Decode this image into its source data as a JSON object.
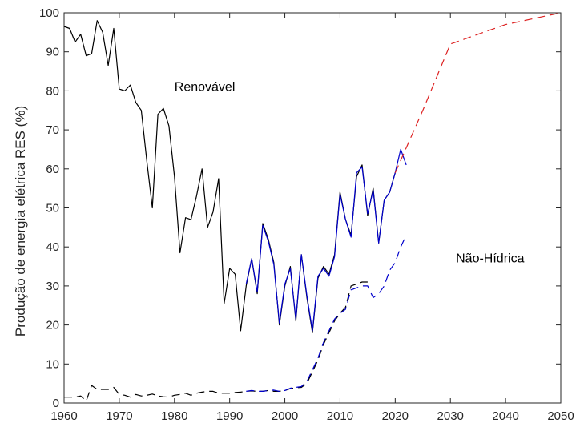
{
  "chart_data": {
    "type": "line",
    "title": "",
    "xlabel": "",
    "ylabel": "Produção de energia elétrica RES (%)",
    "xlim": [
      1960,
      2050
    ],
    "ylim": [
      0,
      100
    ],
    "xticks": [
      1960,
      1970,
      1980,
      1990,
      2000,
      2010,
      2020,
      2030,
      2040,
      2050
    ],
    "yticks": [
      0,
      10,
      20,
      30,
      40,
      50,
      60,
      70,
      80,
      90,
      100
    ],
    "grid": false,
    "annotations": [
      {
        "text": "Renovável",
        "x": 1980,
        "y": 80
      },
      {
        "text": "Não-Hídrica",
        "x": 2031,
        "y": 36
      }
    ],
    "series": [
      {
        "style": "solid",
        "color": "#000000",
        "x": [
          1960,
          1961,
          1962,
          1963,
          1964,
          1965,
          1966,
          1967,
          1968,
          1969,
          1970,
          1971,
          1972,
          1973,
          1974,
          1975,
          1976,
          1977,
          1978,
          1979,
          1980,
          1981,
          1982,
          1983,
          1984,
          1985,
          1986,
          1987,
          1988,
          1989,
          1990,
          1991,
          1992,
          1993,
          1994,
          1995,
          1996,
          1997,
          1998,
          1999,
          2000,
          2001,
          2002,
          2003,
          2004,
          2005,
          2006,
          2007,
          2008,
          2009,
          2010,
          2011,
          2012,
          2013,
          2014,
          2015,
          2016,
          2017,
          2018,
          2019,
          2020
        ],
        "y": [
          96.5,
          96,
          92.5,
          94.5,
          89,
          89.5,
          98,
          95,
          86.5,
          96,
          80.5,
          80,
          81.5,
          77,
          75,
          62,
          50,
          74,
          75.5,
          71,
          58,
          38.5,
          47.5,
          47,
          53,
          60,
          45,
          49,
          57.5,
          25.5,
          34.5,
          33,
          18.5,
          30,
          37,
          28,
          46,
          42,
          36,
          20,
          30,
          35,
          21,
          38,
          27,
          18,
          32,
          35,
          33,
          38,
          54,
          47,
          43,
          58,
          61,
          48,
          55,
          41,
          52,
          54,
          59
        ]
      },
      {
        "style": "solid",
        "color": "#0000cc",
        "x": [
          1993,
          1994,
          1995,
          1996,
          1997,
          1998,
          1999,
          2000,
          2001,
          2002,
          2003,
          2004,
          2005,
          2006,
          2007,
          2008,
          2009,
          2010,
          2011,
          2012,
          2013,
          2014,
          2015,
          2016,
          2017,
          2018,
          2019,
          2020,
          2021,
          2022
        ],
        "y": [
          30.5,
          37,
          28.5,
          45.5,
          41.5,
          35.5,
          20.5,
          30.5,
          34.5,
          21.5,
          38,
          27.5,
          18.5,
          32.5,
          34.5,
          32.5,
          37.5,
          53.5,
          47,
          42.5,
          59,
          60.5,
          48.5,
          54.5,
          41,
          52,
          54,
          59,
          65,
          61
        ]
      },
      {
        "style": "dashed",
        "color": "#000000",
        "x": [
          1960,
          1962,
          1963,
          1964,
          1965,
          1966,
          1967,
          1968,
          1969,
          1970,
          1971,
          1972,
          1973,
          1974,
          1975,
          1976,
          1977,
          1978,
          1979,
          1980,
          1981,
          1982,
          1983,
          1984,
          1985,
          1986,
          1987,
          1988,
          1989,
          1990,
          1991,
          1992,
          1993,
          1994,
          1995,
          1996,
          1997,
          1998,
          1999,
          2000,
          2001,
          2002,
          2003,
          2004,
          2005,
          2006,
          2007,
          2008,
          2009,
          2010,
          2011,
          2012,
          2013,
          2014,
          2015
        ],
        "y": [
          1.5,
          1.5,
          1.8,
          0.5,
          4.5,
          3.5,
          3.5,
          3.5,
          4,
          2.2,
          2,
          1.5,
          2.2,
          1.8,
          2,
          2.3,
          1.8,
          1.6,
          1.5,
          2,
          2.2,
          2.5,
          2,
          2.5,
          2.8,
          3,
          3,
          2.5,
          2.5,
          2.5,
          2.7,
          2.8,
          3,
          3.1,
          3,
          3,
          3.2,
          3,
          3,
          3.2,
          3.7,
          3.9,
          4,
          5,
          8,
          11,
          15,
          18,
          21,
          23,
          24.5,
          30,
          30.5,
          31,
          31
        ]
      },
      {
        "style": "dashed",
        "color": "#0000cc",
        "x": [
          1993,
          1994,
          1995,
          1996,
          1997,
          1998,
          1999,
          2000,
          2001,
          2002,
          2003,
          2004,
          2005,
          2006,
          2007,
          2008,
          2009,
          2010,
          2011,
          2012,
          2013,
          2014,
          2015,
          2016,
          2017,
          2018,
          2019,
          2020,
          2021,
          2022
        ],
        "y": [
          3,
          3.2,
          3,
          3,
          3.2,
          3.3,
          3,
          3.2,
          3.8,
          4,
          4.2,
          5.5,
          8.5,
          11.5,
          15.5,
          18.5,
          21.5,
          23,
          24,
          29,
          29.5,
          30,
          30,
          27,
          28,
          30,
          34,
          36,
          40,
          43
        ]
      },
      {
        "style": "dashed",
        "color": "#dd2222",
        "x": [
          2020,
          2025,
          2030,
          2040,
          2050
        ],
        "y": [
          59,
          75,
          92,
          97,
          100
        ]
      }
    ]
  }
}
